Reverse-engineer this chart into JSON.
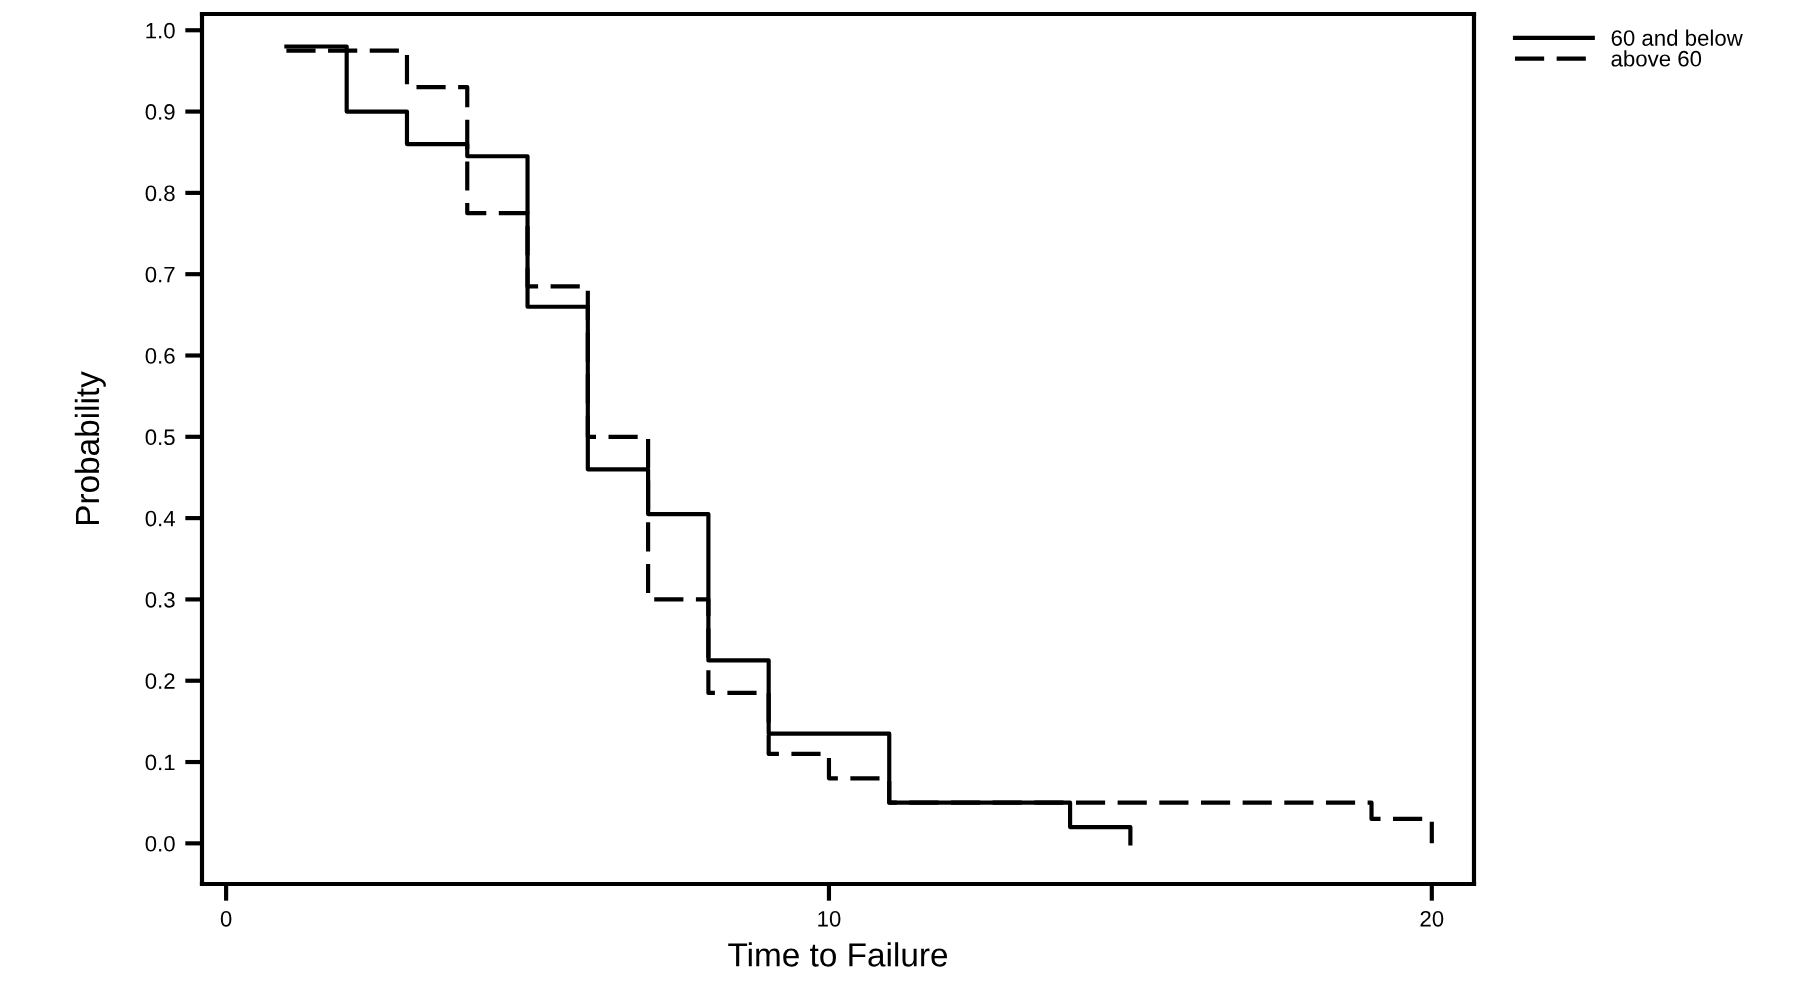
{
  "chart_data": {
    "type": "step",
    "xlabel": "Time to Failure",
    "ylabel": "Probability",
    "series": [
      {
        "name": "60 and below",
        "color": "#000000",
        "line_style": "solid",
        "x": [
          1,
          2,
          3,
          4,
          5,
          6,
          7,
          8,
          9,
          11,
          14,
          15
        ],
        "values": [
          0.98,
          0.9,
          0.86,
          0.845,
          0.66,
          0.46,
          0.405,
          0.225,
          0.135,
          0.05,
          0.02,
          0
        ]
      },
      {
        "name": "above 60",
        "color": "#000000",
        "line_style": "dashed",
        "x": [
          1,
          3,
          4,
          5,
          6,
          7,
          8,
          9,
          10,
          11,
          19,
          20
        ],
        "values": [
          0.975,
          0.93,
          0.775,
          0.685,
          0.5,
          0.3,
          0.185,
          0.11,
          0.08,
          0.05,
          0.03,
          0
        ]
      }
    ],
    "xlim": [
      -0.4,
      20.7
    ],
    "ylim": [
      -0.05,
      1.02
    ],
    "xticks": [
      0,
      10,
      20
    ],
    "yticks": [
      {
        "value": 0,
        "label": "0.0"
      },
      0.1,
      0.2,
      0.3,
      0.4,
      0.5,
      0.6,
      0.7,
      0.8,
      0.9,
      {
        "value": 1,
        "label": "1.0"
      }
    ],
    "grid": false,
    "legend": "top right"
  }
}
